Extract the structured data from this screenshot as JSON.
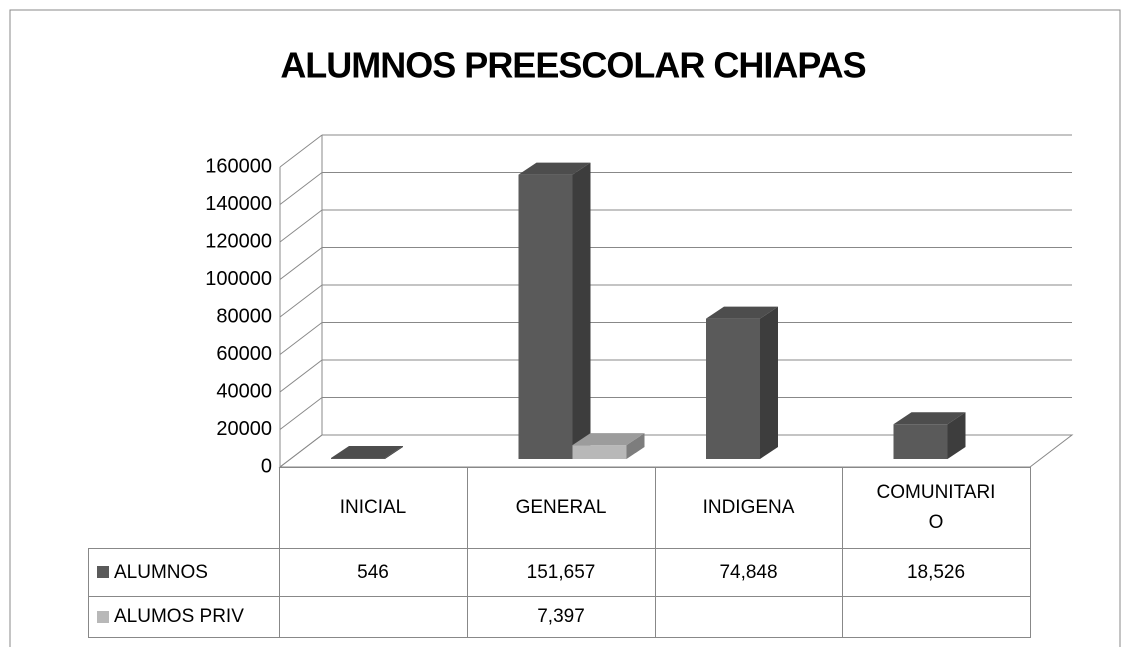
{
  "chart_data": {
    "type": "bar3d",
    "title": "ALUMNOS PREESCOLAR CHIAPAS",
    "categories": [
      "INICIAL",
      "GENERAL",
      "INDIGENA",
      "COMUNITARIO"
    ],
    "series": [
      {
        "name": "ALUMNOS",
        "color": "#5a5a5a",
        "values": [
          546,
          151657,
          74848,
          18526
        ],
        "value_labels": [
          "546",
          "151,657",
          "74,848",
          "18,526"
        ]
      },
      {
        "name": "ALUMOS PRIV",
        "color": "#b8b8b8",
        "values": [
          null,
          7397,
          null,
          null
        ],
        "value_labels": [
          null,
          "7,397",
          null,
          null
        ]
      }
    ],
    "ylim": [
      0,
      160000
    ],
    "yticks": [
      0,
      20000,
      40000,
      60000,
      80000,
      100000,
      120000,
      140000,
      160000
    ],
    "grid": true
  }
}
